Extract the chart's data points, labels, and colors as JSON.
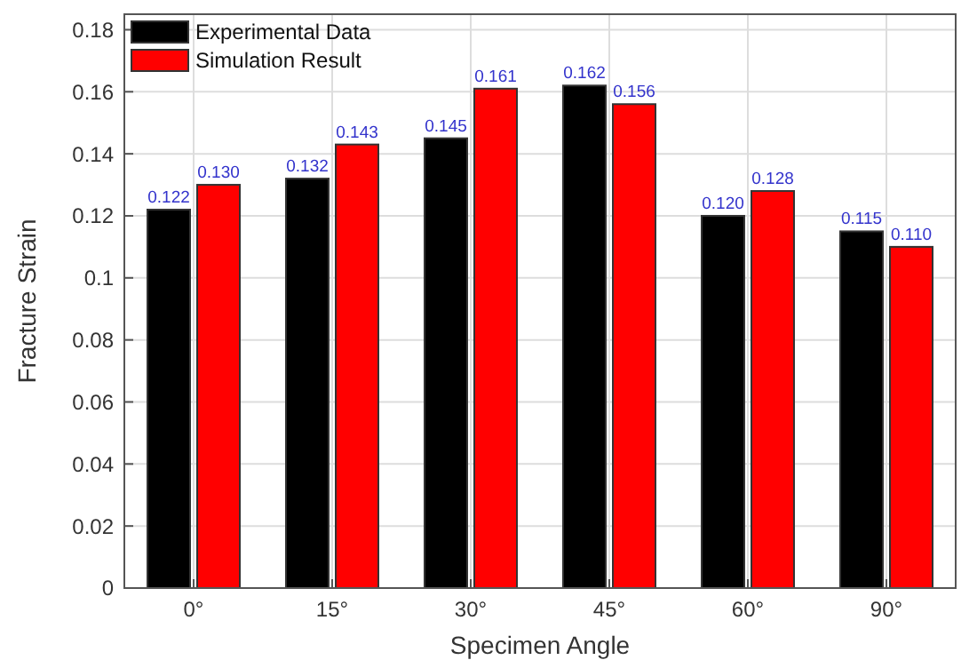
{
  "chart_data": {
    "type": "bar",
    "xlabel": "Specimen Angle",
    "ylabel": "Fracture Strain",
    "categories": [
      "0°",
      "15°",
      "30°",
      "45°",
      "60°",
      "90°"
    ],
    "series": [
      {
        "name": "Experimental Data",
        "color": "#000000",
        "values": [
          0.122,
          0.132,
          0.145,
          0.162,
          0.12,
          0.115
        ],
        "value_labels": [
          "0.122",
          "0.132",
          "0.145",
          "0.162",
          "0.120",
          "0.115"
        ]
      },
      {
        "name": "Simulation Result",
        "color": "#ff0000",
        "values": [
          0.13,
          0.143,
          0.161,
          0.156,
          0.128,
          0.11
        ],
        "value_labels": [
          "0.130",
          "0.143",
          "0.161",
          "0.156",
          "0.128",
          "0.110"
        ]
      }
    ],
    "ylim": [
      0,
      0.185
    ],
    "yticks": [
      0,
      0.02,
      0.04,
      0.06,
      0.08,
      0.1,
      0.12,
      0.14,
      0.16,
      0.18
    ],
    "grid": true,
    "legend": "top left"
  }
}
